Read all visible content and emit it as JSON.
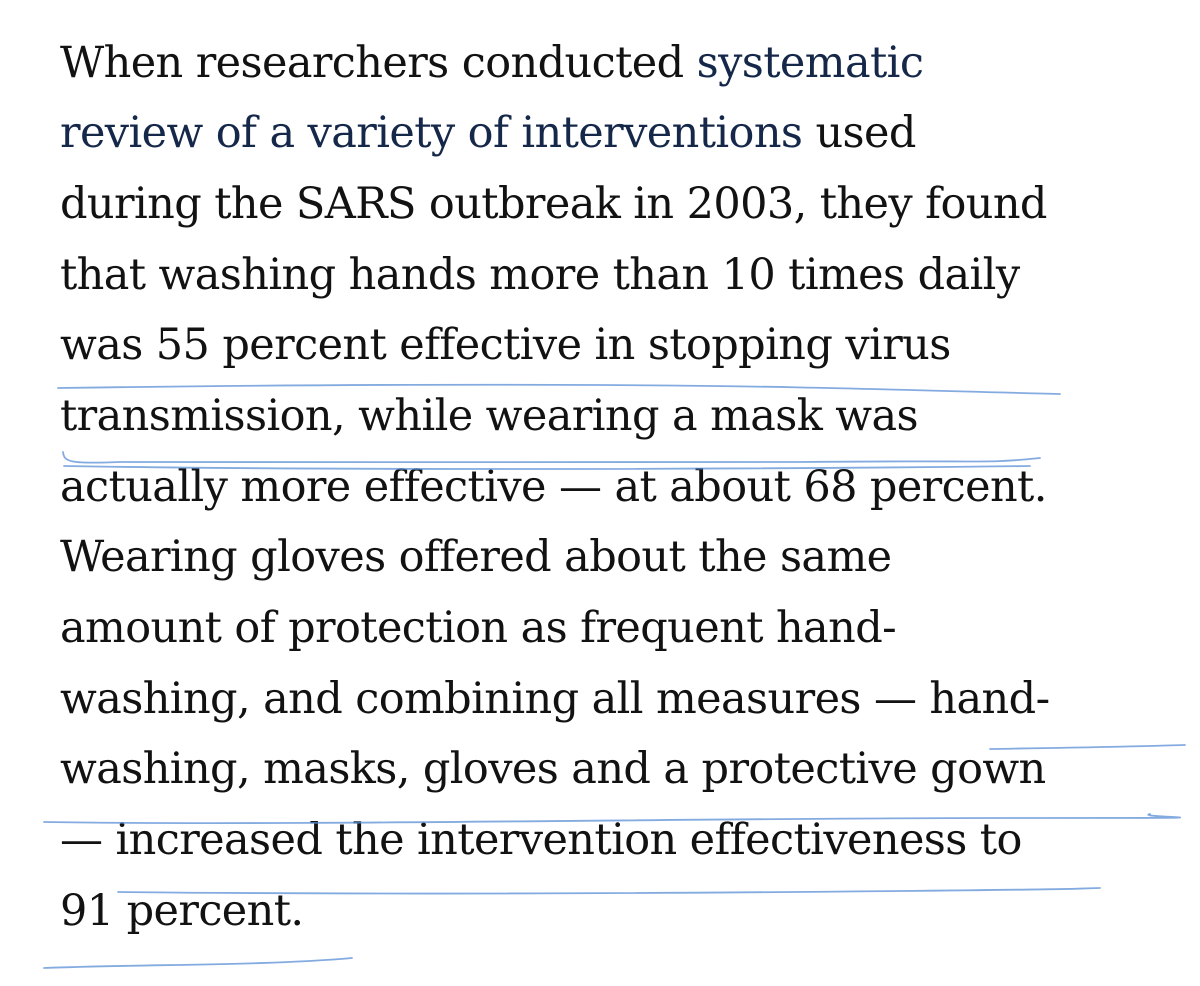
{
  "article": {
    "line1_pre": "When researchers conducted ",
    "line1_link": "systematic",
    "line2_link": "review of a variety of interventions",
    "line2_post": " used",
    "line3": "during the SARS outbreak in 2003, they found",
    "line4": "that washing hands more than 10 times daily",
    "line5": "was 55 percent effective in stopping virus",
    "line6": "transmission, while wearing a mask was",
    "line7": "actually more effective — at about 68 percent.",
    "line8": "Wearing gloves offered about the same",
    "line9": "amount of protection as frequent hand-",
    "line10": "washing, and combining all measures — hand-",
    "line11": "washing, masks, gloves and a protective gown",
    "line12": "— increased the intervention effectiveness to",
    "line13": "91 percent."
  },
  "colors": {
    "text": "#121212",
    "link": "#16284a",
    "annotation_ink": "#5b8fd6",
    "background": "#ffffff"
  }
}
